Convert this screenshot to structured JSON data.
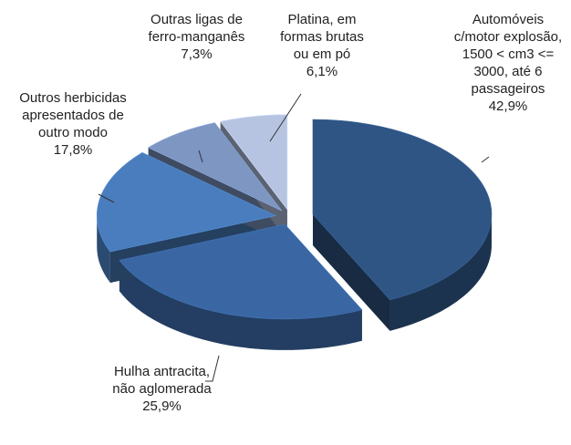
{
  "chart_data": {
    "type": "pie",
    "categories": [
      "Automóveis c/motor explosão, 1500 < cm3 <= 3000, até 6 passageiros",
      "Hulha antracita, não aglomerada",
      "Outros herbicidas apresentados de outro modo",
      "Outras ligas de ferro-manganês",
      "Platina, em formas brutas ou em pó"
    ],
    "values": [
      42.9,
      25.9,
      17.8,
      7.3,
      6.1
    ],
    "value_labels": [
      "42,9%",
      "25,9%",
      "17,8%",
      "7,3%",
      "6,1%"
    ],
    "colors": [
      "#2f5584",
      "#3a67a3",
      "#4a7dbd",
      "#7d96c2",
      "#b6c4e1"
    ],
    "three_d": true
  }
}
